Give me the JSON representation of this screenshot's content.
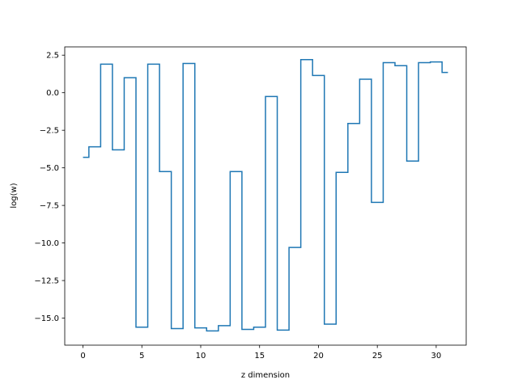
{
  "chart_data": {
    "type": "line",
    "drawstyle": "steps-mid",
    "title": "",
    "xlabel": "z dimension",
    "ylabel": "log(w)",
    "xlim": [
      -1.55,
      32.55
    ],
    "ylim": [
      -16.8,
      3.05
    ],
    "xticks": [
      0,
      5,
      10,
      15,
      20,
      25,
      30
    ],
    "xtick_labels": [
      "0",
      "5",
      "10",
      "15",
      "20",
      "25",
      "30"
    ],
    "yticks": [
      2.5,
      0.0,
      -2.5,
      -5.0,
      -7.5,
      -10.0,
      -12.5,
      -15.0
    ],
    "ytick_labels": [
      "2.5",
      "0.0",
      "−2.5",
      "−5.0",
      "−7.5",
      "−10.0",
      "−12.5",
      "−15.0"
    ],
    "grid": false,
    "series": [
      {
        "color": "#1f77b4",
        "x": [
          0,
          1,
          2,
          3,
          4,
          5,
          6,
          7,
          8,
          9,
          10,
          11,
          12,
          13,
          14,
          15,
          16,
          17,
          18,
          19,
          20,
          21,
          22,
          23,
          24,
          25,
          26,
          27,
          28,
          29,
          30,
          31
        ],
        "y": [
          -4.3,
          -3.6,
          1.9,
          -3.8,
          1.0,
          -15.6,
          1.9,
          -5.25,
          -15.7,
          1.95,
          -15.65,
          -15.85,
          -15.5,
          -5.25,
          -15.75,
          -15.6,
          -0.25,
          -15.8,
          -10.3,
          2.2,
          1.15,
          -15.4,
          -5.3,
          -2.05,
          0.9,
          -7.3,
          2.0,
          1.8,
          -4.55,
          2.0,
          2.05,
          1.35
        ]
      }
    ]
  }
}
